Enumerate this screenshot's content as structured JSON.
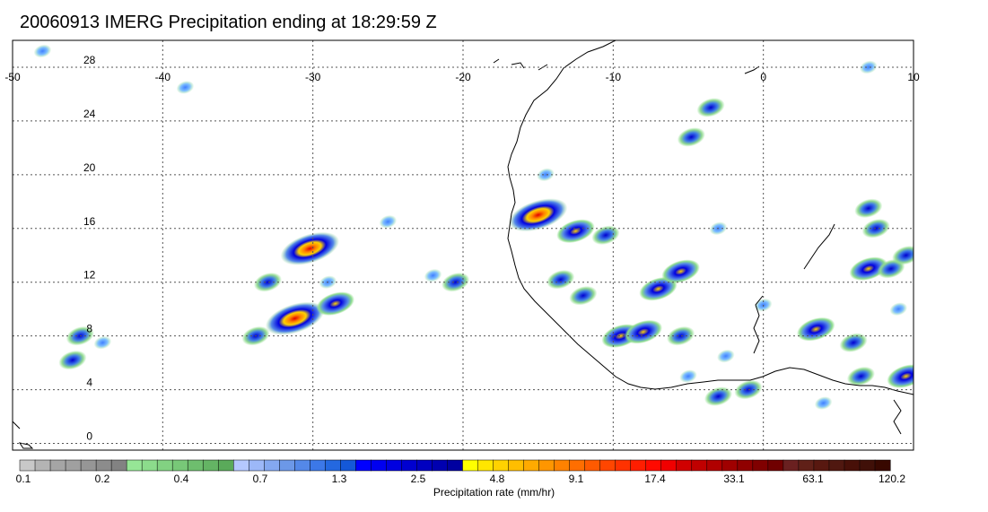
{
  "title": "20060913 IMERG Precipitation ending at 18:29:59 Z",
  "map": {
    "lon_range": [
      -50,
      10
    ],
    "lat_range": [
      -0.5,
      30
    ],
    "lon_ticks": [
      {
        "value": -50,
        "label": "-50"
      },
      {
        "value": -40,
        "label": "-40"
      },
      {
        "value": -30,
        "label": "-30"
      },
      {
        "value": -20,
        "label": "-20"
      },
      {
        "value": -10,
        "label": "-10"
      },
      {
        "value": 0,
        "label": "0"
      },
      {
        "value": 10,
        "label": "10"
      }
    ],
    "lat_ticks": [
      {
        "value": 0,
        "label": "0"
      },
      {
        "value": 4,
        "label": "4"
      },
      {
        "value": 8,
        "label": "8"
      },
      {
        "value": 12,
        "label": "12"
      },
      {
        "value": 16,
        "label": "16"
      },
      {
        "value": 20,
        "label": "20"
      },
      {
        "value": 24,
        "label": "24"
      },
      {
        "value": 28,
        "label": "28"
      }
    ],
    "grid": "dotted",
    "precip_cells": [
      {
        "lon": -30.2,
        "lat": 14.5,
        "intensity": 4
      },
      {
        "lon": -31.2,
        "lat": 9.3,
        "intensity": 4
      },
      {
        "lon": -28.5,
        "lat": 10.4,
        "intensity": 3
      },
      {
        "lon": -33.0,
        "lat": 12.0,
        "intensity": 2
      },
      {
        "lon": -33.8,
        "lat": 8.0,
        "intensity": 2
      },
      {
        "lon": -29.0,
        "lat": 12.0,
        "intensity": 1
      },
      {
        "lon": -25.0,
        "lat": 16.5,
        "intensity": 1
      },
      {
        "lon": -22.0,
        "lat": 12.5,
        "intensity": 1
      },
      {
        "lon": -20.5,
        "lat": 12.0,
        "intensity": 2
      },
      {
        "lon": -45.5,
        "lat": 8.0,
        "intensity": 2
      },
      {
        "lon": -46.0,
        "lat": 6.2,
        "intensity": 2
      },
      {
        "lon": -44.0,
        "lat": 7.5,
        "intensity": 1
      },
      {
        "lon": -15.0,
        "lat": 17.0,
        "intensity": 4
      },
      {
        "lon": -12.5,
        "lat": 15.8,
        "intensity": 3
      },
      {
        "lon": -10.5,
        "lat": 15.5,
        "intensity": 2
      },
      {
        "lon": -13.5,
        "lat": 12.2,
        "intensity": 2
      },
      {
        "lon": -12.0,
        "lat": 11.0,
        "intensity": 2
      },
      {
        "lon": -7.0,
        "lat": 11.5,
        "intensity": 3
      },
      {
        "lon": -5.5,
        "lat": 12.8,
        "intensity": 3
      },
      {
        "lon": -9.5,
        "lat": 8.0,
        "intensity": 3
      },
      {
        "lon": -8.0,
        "lat": 8.3,
        "intensity": 3
      },
      {
        "lon": -5.5,
        "lat": 8.0,
        "intensity": 2
      },
      {
        "lon": -3.0,
        "lat": 3.5,
        "intensity": 2
      },
      {
        "lon": -1.0,
        "lat": 4.0,
        "intensity": 2
      },
      {
        "lon": 3.5,
        "lat": 8.5,
        "intensity": 3
      },
      {
        "lon": 6.0,
        "lat": 7.5,
        "intensity": 2
      },
      {
        "lon": 7.0,
        "lat": 13.0,
        "intensity": 3
      },
      {
        "lon": 8.5,
        "lat": 13.0,
        "intensity": 2
      },
      {
        "lon": 7.0,
        "lat": 17.5,
        "intensity": 2
      },
      {
        "lon": 7.5,
        "lat": 16.0,
        "intensity": 2
      },
      {
        "lon": 9.5,
        "lat": 14.0,
        "intensity": 2
      },
      {
        "lon": 9.5,
        "lat": 5.0,
        "intensity": 3
      },
      {
        "lon": 6.5,
        "lat": 5.0,
        "intensity": 2
      },
      {
        "lon": 4.0,
        "lat": 3.0,
        "intensity": 1
      },
      {
        "lon": -3.5,
        "lat": 25.0,
        "intensity": 2
      },
      {
        "lon": -4.8,
        "lat": 22.8,
        "intensity": 2
      },
      {
        "lon": -3.0,
        "lat": 16.0,
        "intensity": 1
      },
      {
        "lon": -2.5,
        "lat": 6.5,
        "intensity": 1
      },
      {
        "lon": 0.0,
        "lat": 10.3,
        "intensity": 1
      },
      {
        "lon": 7.0,
        "lat": 28.0,
        "intensity": 1
      },
      {
        "lon": 9.0,
        "lat": 10.0,
        "intensity": 1
      },
      {
        "lon": -5.0,
        "lat": 5.0,
        "intensity": 1
      },
      {
        "lon": -14.5,
        "lat": 20.0,
        "intensity": 1
      },
      {
        "lon": -38.5,
        "lat": 26.5,
        "intensity": 1
      },
      {
        "lon": -48.0,
        "lat": 29.2,
        "intensity": 1
      }
    ]
  },
  "colorbar": {
    "units": "Precipitation rate (mm/hr)",
    "colors": [
      "#c8c8c8",
      "#b4b4b4",
      "#a5a5a5",
      "#a0a0a0",
      "#969696",
      "#8c8c8c",
      "#828282",
      "#96e696",
      "#8cdc8c",
      "#82d282",
      "#78c878",
      "#6ebe6e",
      "#64b464",
      "#5aaa5a",
      "#b4c8ff",
      "#9cb8f8",
      "#84a8f0",
      "#6c98e8",
      "#5488e8",
      "#3c78e8",
      "#2468e0",
      "#1458d8",
      "#0000ff",
      "#0000f0",
      "#0000e0",
      "#0000d0",
      "#0000c0",
      "#0000b0",
      "#0000a0",
      "#ffff00",
      "#ffe600",
      "#ffd200",
      "#ffbe00",
      "#ffaa00",
      "#ff9600",
      "#ff8200",
      "#ff6e00",
      "#ff5a00",
      "#ff4600",
      "#ff3200",
      "#ff1e00",
      "#ff0a00",
      "#f00000",
      "#d00000",
      "#c00000",
      "#b00000",
      "#a00000",
      "#900000",
      "#800000",
      "#700000",
      "#6a2020",
      "#602018",
      "#581810",
      "#501810",
      "#481008",
      "#401008",
      "#380800"
    ],
    "labels": [
      "0.1",
      "0.2",
      "0.4",
      "0.7",
      "1.3",
      "2.5",
      "4.8",
      "9.1",
      "17.4",
      "33.1",
      "63.1",
      "120.2"
    ]
  }
}
